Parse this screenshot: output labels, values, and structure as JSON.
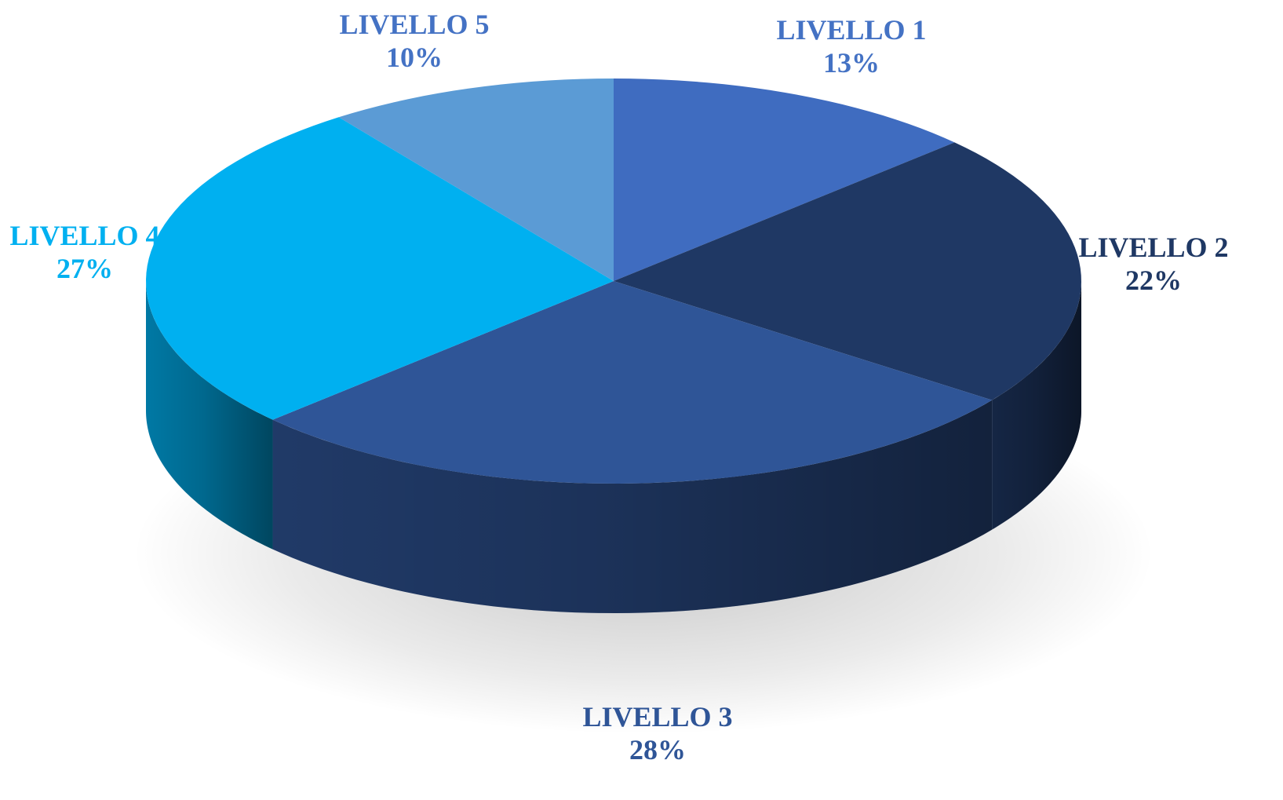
{
  "chart_data": {
    "type": "pie",
    "style": "3d",
    "start": "top",
    "direction": "clockwise",
    "slices": [
      {
        "label": "LIVELLO 1",
        "value": 13,
        "value_label": "13%",
        "color": "#3f6cc0",
        "label_color": "#4472c4"
      },
      {
        "label": "LIVELLO 2",
        "value": 22,
        "value_label": "22%",
        "color": "#1f3864",
        "label_color": "#1f3864"
      },
      {
        "label": "LIVELLO 3",
        "value": 28,
        "value_label": "28%",
        "color": "#2f5597",
        "label_color": "#2f5597"
      },
      {
        "label": "LIVELLO 4",
        "value": 27,
        "value_label": "27%",
        "color": "#00b0f0",
        "label_color": "#00b0f0"
      },
      {
        "label": "LIVELLO 5",
        "value": 10,
        "value_label": "10%",
        "color": "#5b9bd5",
        "label_color": "#4472c4"
      }
    ]
  }
}
